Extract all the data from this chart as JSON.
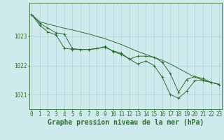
{
  "title": "Graphe pression niveau de la mer (hPa)",
  "xlabel_hours": [
    0,
    1,
    2,
    3,
    4,
    5,
    6,
    7,
    8,
    9,
    10,
    11,
    12,
    13,
    14,
    15,
    16,
    17,
    18,
    19,
    20,
    21,
    22,
    23
  ],
  "line1": [
    1023.75,
    1023.5,
    1023.42,
    1023.35,
    1023.28,
    1023.22,
    1023.15,
    1023.08,
    1023.0,
    1022.92,
    1022.82,
    1022.72,
    1022.6,
    1022.48,
    1022.38,
    1022.28,
    1022.18,
    1022.05,
    1021.9,
    1021.75,
    1021.6,
    1021.5,
    1021.42,
    1021.35
  ],
  "line2": [
    1023.75,
    1023.38,
    1023.15,
    1023.05,
    1022.6,
    1022.55,
    1022.55,
    1022.55,
    1022.58,
    1022.62,
    1022.5,
    1022.42,
    1022.22,
    1022.05,
    1022.15,
    1022.0,
    1021.6,
    1021.0,
    1020.88,
    1021.12,
    1021.48,
    1021.48,
    1021.42,
    1021.35
  ],
  "line3": [
    1023.75,
    1023.45,
    1023.28,
    1023.12,
    1023.08,
    1022.58,
    1022.55,
    1022.55,
    1022.58,
    1022.65,
    1022.48,
    1022.38,
    1022.22,
    1022.32,
    1022.32,
    1022.28,
    1022.12,
    1021.72,
    1021.08,
    1021.52,
    1021.62,
    1021.55,
    1021.42,
    1021.35
  ],
  "bg_color": "#ceeaed",
  "grid_color": "#aad4d8",
  "line_color": "#2d6e2d",
  "text_color": "#2d6e2d",
  "ylim": [
    1020.5,
    1024.15
  ],
  "yticks": [
    1021,
    1022,
    1023
  ],
  "title_fontsize": 7,
  "tick_fontsize": 5.5,
  "axis_color": "#2d6e2d"
}
